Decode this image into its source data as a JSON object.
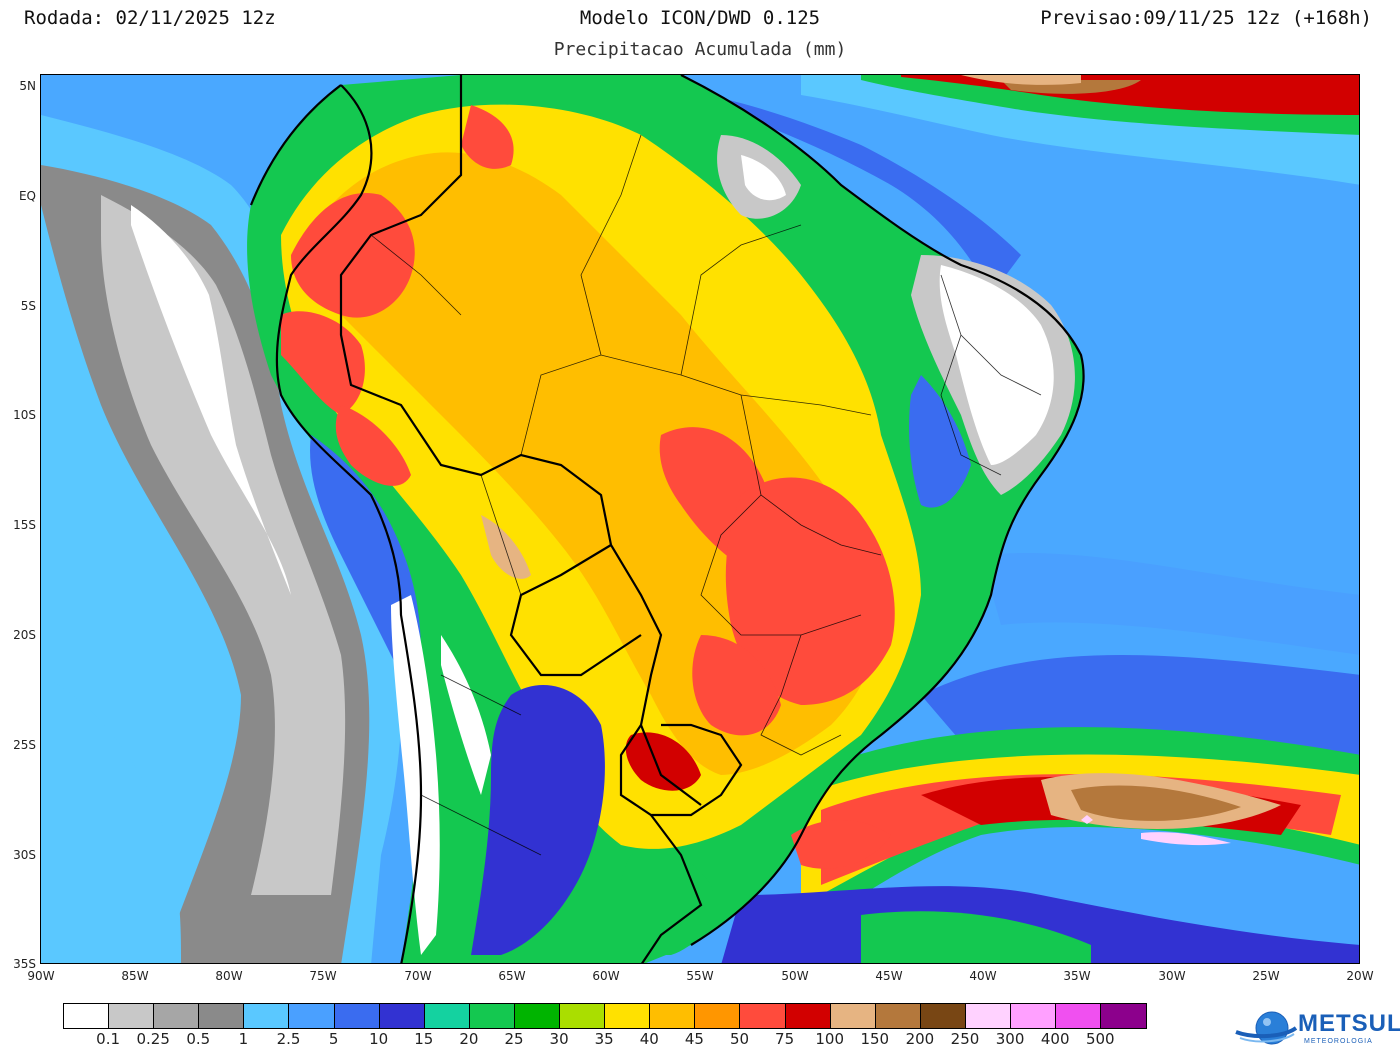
{
  "header": {
    "run_date": "Rodada: 02/11/2025 12z",
    "model": "Modelo ICON/DWD 0.125",
    "product": "Precipitacao Acumulada (mm)",
    "forecast": "Previsao:09/11/25 12z (+168h)"
  },
  "axes": {
    "lat_labels": [
      "5N",
      "EQ",
      "5S",
      "10S",
      "15S",
      "20S",
      "25S",
      "30S",
      "35S"
    ],
    "lon_labels": [
      "90W",
      "85W",
      "80W",
      "75W",
      "70W",
      "65W",
      "60W",
      "55W",
      "50W",
      "45W",
      "40W",
      "35W",
      "30W",
      "25W",
      "20W"
    ]
  },
  "legend": {
    "colors": [
      "#ffffff",
      "#c8c8c8",
      "#a6a6a6",
      "#8a8a8a",
      "#5ac8ff",
      "#4aa0ff",
      "#3a6cf0",
      "#3232d2",
      "#14d2a0",
      "#14c850",
      "#00b400",
      "#aade00",
      "#ffe100",
      "#ffbe00",
      "#ff9600",
      "#ff4b3c",
      "#d20000",
      "#e6b482",
      "#b4783c",
      "#784614",
      "#ffd2ff",
      "#ffa0ff",
      "#f050f0",
      "#8c008c"
    ],
    "labels": [
      "0.1",
      "0.25",
      "0.5",
      "1",
      "2.5",
      "5",
      "10",
      "15",
      "20",
      "25",
      "30",
      "35",
      "40",
      "45",
      "50",
      "75",
      "100",
      "150",
      "200",
      "250",
      "300",
      "400",
      "500"
    ]
  },
  "logo": {
    "name": "METSUL",
    "subtitle": "METEOROLOGIA"
  }
}
